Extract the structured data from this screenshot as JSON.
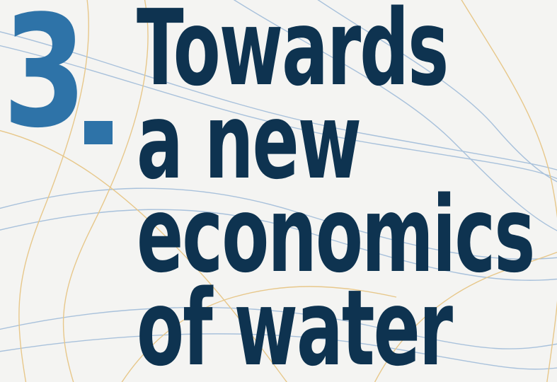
{
  "chapter": {
    "number": "3",
    "title_lines": [
      "Towards",
      "a new",
      "economics",
      "of water"
    ]
  },
  "colors": {
    "background": "#f4f4f2",
    "number": "#2e73a8",
    "title": "#0e3350",
    "line_blue": "#8fb0d4",
    "line_gold": "#e3b968"
  }
}
